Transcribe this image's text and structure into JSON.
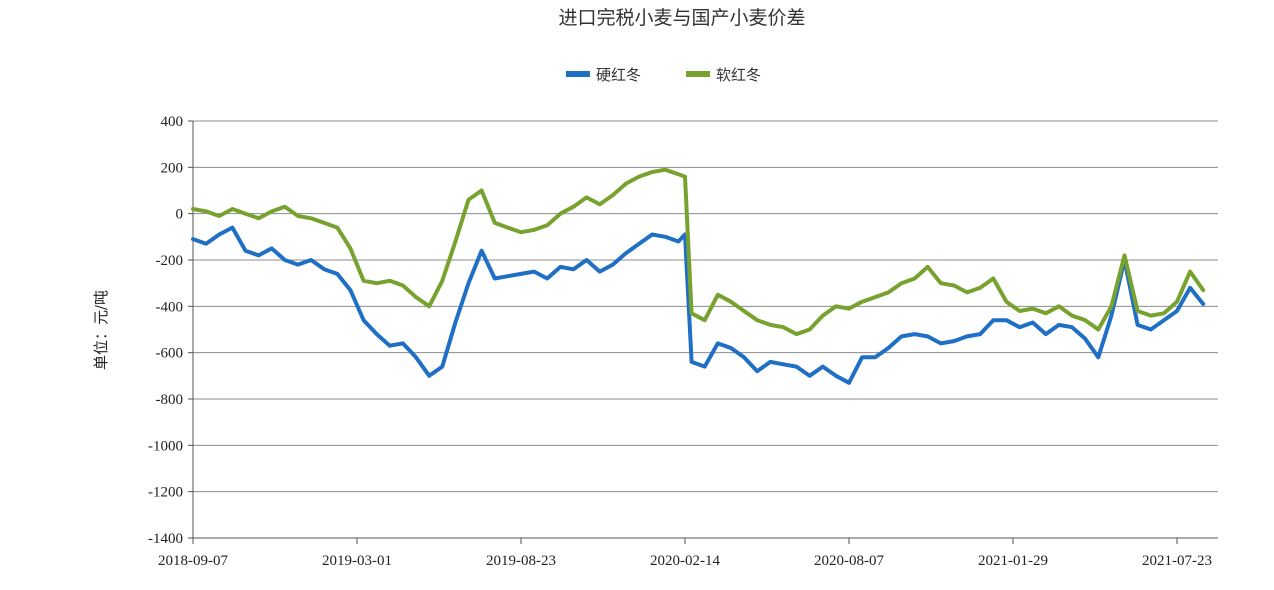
{
  "chart_data": {
    "type": "line",
    "title": "进口完税小麦与国产小麦价差",
    "ylabel": "单位：元/吨",
    "xlabel": "",
    "ylim": [
      -1400,
      400
    ],
    "yticks": [
      400,
      200,
      0,
      -200,
      -400,
      -600,
      -800,
      -1000,
      -1200,
      -1400
    ],
    "xticks": [
      "2018-09-07",
      "2019-03-01",
      "2019-08-23",
      "2020-02-14",
      "2020-08-07",
      "2021-01-29",
      "2021-07-23"
    ],
    "grid": "horizontal",
    "legend_position": "top",
    "series": [
      {
        "name": "硬红冬",
        "color": "#1f6fc5",
        "x": [
          "2018-09-07",
          "2018-09-21",
          "2018-10-05",
          "2018-10-19",
          "2018-11-02",
          "2018-11-16",
          "2018-11-30",
          "2018-12-14",
          "2018-12-28",
          "2019-01-11",
          "2019-01-25",
          "2019-02-08",
          "2019-02-22",
          "2019-03-08",
          "2019-03-22",
          "2019-04-05",
          "2019-04-19",
          "2019-05-03",
          "2019-05-17",
          "2019-05-31",
          "2019-06-14",
          "2019-06-28",
          "2019-07-12",
          "2019-07-26",
          "2019-08-09",
          "2019-08-23",
          "2019-09-06",
          "2019-09-20",
          "2019-10-04",
          "2019-10-18",
          "2019-11-01",
          "2019-11-15",
          "2019-11-29",
          "2019-12-13",
          "2019-12-27",
          "2020-01-10",
          "2020-01-24",
          "2020-02-07",
          "2020-02-14",
          "2020-02-21",
          "2020-03-06",
          "2020-03-20",
          "2020-04-03",
          "2020-04-17",
          "2020-05-01",
          "2020-05-15",
          "2020-05-29",
          "2020-06-12",
          "2020-06-26",
          "2020-07-10",
          "2020-07-24",
          "2020-08-07",
          "2020-08-21",
          "2020-09-04",
          "2020-09-18",
          "2020-10-02",
          "2020-10-16",
          "2020-10-30",
          "2020-11-13",
          "2020-11-27",
          "2020-12-11",
          "2020-12-25",
          "2021-01-08",
          "2021-01-22",
          "2021-02-05",
          "2021-02-19",
          "2021-03-05",
          "2021-03-19",
          "2021-04-02",
          "2021-04-16",
          "2021-04-30",
          "2021-05-14",
          "2021-05-28",
          "2021-06-11",
          "2021-06-25",
          "2021-07-09",
          "2021-07-23",
          "2021-08-06",
          "2021-08-20"
        ],
        "values": [
          -110,
          -130,
          -90,
          -60,
          -160,
          -180,
          -150,
          -200,
          -220,
          -200,
          -240,
          -260,
          -330,
          -460,
          -520,
          -570,
          -560,
          -620,
          -700,
          -660,
          -470,
          -300,
          -160,
          -280,
          -270,
          -260,
          -250,
          -280,
          -230,
          -240,
          -200,
          -250,
          -220,
          -170,
          -130,
          -90,
          -100,
          -120,
          -90,
          -640,
          -660,
          -560,
          -580,
          -620,
          -680,
          -640,
          -650,
          -660,
          -700,
          -660,
          -700,
          -730,
          -620,
          -620,
          -580,
          -530,
          -520,
          -530,
          -560,
          -550,
          -530,
          -520,
          -460,
          -460,
          -490,
          -470,
          -520,
          -480,
          -490,
          -540,
          -620,
          -440,
          -200,
          -480,
          -500,
          -460,
          -420,
          -320,
          -390
        ]
      },
      {
        "name": "软红冬",
        "color": "#78a22f",
        "x": [
          "2018-09-07",
          "2018-09-21",
          "2018-10-05",
          "2018-10-19",
          "2018-11-02",
          "2018-11-16",
          "2018-11-30",
          "2018-12-14",
          "2018-12-28",
          "2019-01-11",
          "2019-01-25",
          "2019-02-08",
          "2019-02-22",
          "2019-03-08",
          "2019-03-22",
          "2019-04-05",
          "2019-04-19",
          "2019-05-03",
          "2019-05-17",
          "2019-05-31",
          "2019-06-14",
          "2019-06-28",
          "2019-07-12",
          "2019-07-26",
          "2019-08-09",
          "2019-08-23",
          "2019-09-06",
          "2019-09-20",
          "2019-10-04",
          "2019-10-18",
          "2019-11-01",
          "2019-11-15",
          "2019-11-29",
          "2019-12-13",
          "2019-12-27",
          "2020-01-10",
          "2020-01-24",
          "2020-02-07",
          "2020-02-14",
          "2020-02-21",
          "2020-03-06",
          "2020-03-20",
          "2020-04-03",
          "2020-04-17",
          "2020-05-01",
          "2020-05-15",
          "2020-05-29",
          "2020-06-12",
          "2020-06-26",
          "2020-07-10",
          "2020-07-24",
          "2020-08-07",
          "2020-08-21",
          "2020-09-04",
          "2020-09-18",
          "2020-10-02",
          "2020-10-16",
          "2020-10-30",
          "2020-11-13",
          "2020-11-27",
          "2020-12-11",
          "2020-12-25",
          "2021-01-08",
          "2021-01-22",
          "2021-02-05",
          "2021-02-19",
          "2021-03-05",
          "2021-03-19",
          "2021-04-02",
          "2021-04-16",
          "2021-04-30",
          "2021-05-14",
          "2021-05-28",
          "2021-06-11",
          "2021-06-25",
          "2021-07-09",
          "2021-07-23",
          "2021-08-06",
          "2021-08-20"
        ],
        "values": [
          20,
          10,
          -10,
          20,
          0,
          -20,
          10,
          30,
          -10,
          -20,
          -40,
          -60,
          -150,
          -290,
          -300,
          -290,
          -310,
          -360,
          -400,
          -290,
          -120,
          60,
          100,
          -40,
          -60,
          -80,
          -70,
          -50,
          0,
          30,
          70,
          40,
          80,
          130,
          160,
          180,
          190,
          170,
          160,
          -430,
          -460,
          -350,
          -380,
          -420,
          -460,
          -480,
          -490,
          -520,
          -500,
          -440,
          -400,
          -410,
          -380,
          -360,
          -340,
          -300,
          -280,
          -230,
          -300,
          -310,
          -340,
          -320,
          -280,
          -380,
          -420,
          -410,
          -430,
          -400,
          -440,
          -460,
          -500,
          -400,
          -180,
          -420,
          -440,
          -430,
          -380,
          -250,
          -330
        ]
      }
    ]
  }
}
